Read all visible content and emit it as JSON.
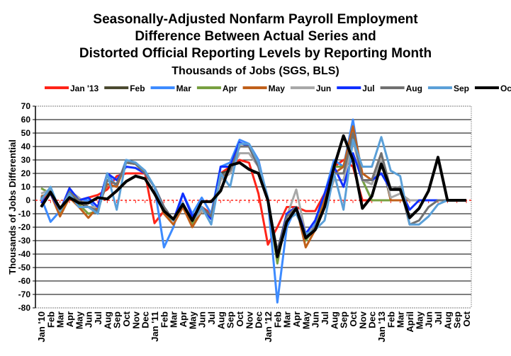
{
  "chart_data": {
    "type": "line",
    "title": [
      "Seasonally-Adjusted Nonfarm Payroll Employment",
      "Difference Between Actual Series and",
      "Distorted Official Reporting Levels by Reporting Month"
    ],
    "subtitle": "Thousands of Jobs (SGS, BLS)",
    "xlabel": "",
    "ylabel": "Thousands of Jobs Differential",
    "ylim": [
      -80,
      70
    ],
    "yticks": [
      70,
      60,
      50,
      40,
      30,
      20,
      10,
      0,
      -10,
      -20,
      -30,
      -40,
      -50,
      -60,
      -70,
      -80
    ],
    "grid": true,
    "legend_position": "top",
    "categories": [
      "Jan '10",
      "Feb",
      "Mar",
      "Apr",
      "May",
      "Jun",
      "Jul",
      "Aug",
      "Sep",
      "Oct",
      "Nov",
      "Dec",
      "Jan '11",
      "Feb",
      "Mar",
      "Apr",
      "May",
      "Jun",
      "Jul",
      "Aug",
      "Sep",
      "Oct",
      "Nov",
      "Dec",
      "Jan '12",
      "Feb",
      "Mar",
      "Apr",
      "May",
      "Jun",
      "Jul",
      "Aug",
      "Sep",
      "Oct",
      "Nov",
      "Dec",
      "Jan '13",
      "Feb",
      "Mar",
      "April",
      "May",
      "Jun",
      "Jul",
      "Aug",
      "Sep",
      "Oct"
    ],
    "series": [
      {
        "name": "Jan '13",
        "color": "#ff2418",
        "width": 3,
        "values": [
          0,
          5,
          -8,
          3,
          0,
          2,
          4,
          8,
          18,
          20,
          20,
          20,
          -17,
          -8,
          -15,
          -5,
          -15,
          -5,
          -10,
          20,
          25,
          30,
          28,
          5,
          -33,
          -20,
          -5,
          -5,
          -8,
          -8,
          5,
          25,
          30,
          25,
          0,
          0,
          0,
          0,
          0,
          0,
          0,
          0,
          0,
          0,
          0,
          0
        ]
      },
      {
        "name": "Feb",
        "color": "#4b4a30",
        "width": 3,
        "values": [
          2,
          7,
          -10,
          5,
          -2,
          -5,
          -8,
          15,
          12,
          28,
          27,
          20,
          10,
          -5,
          -15,
          -2,
          -18,
          -5,
          -12,
          20,
          22,
          40,
          40,
          25,
          0,
          -38,
          -10,
          -5,
          -28,
          -20,
          0,
          25,
          25,
          50,
          15,
          12,
          30,
          0,
          0,
          0,
          0,
          0,
          0,
          0,
          0,
          0
        ]
      },
      {
        "name": "Mar",
        "color": "#3d8bff",
        "width": 3,
        "values": [
          2,
          -16,
          -8,
          8,
          0,
          0,
          -8,
          20,
          10,
          30,
          28,
          20,
          10,
          -35,
          -20,
          5,
          -10,
          2,
          -10,
          25,
          28,
          45,
          42,
          30,
          0,
          -76,
          -20,
          -5,
          -28,
          -18,
          5,
          30,
          25,
          60,
          15,
          0,
          0,
          0,
          0,
          0,
          0,
          0,
          0,
          0,
          0,
          0
        ]
      },
      {
        "name": "Apr",
        "color": "#78a040",
        "width": 3,
        "values": [
          9,
          5,
          -10,
          3,
          -3,
          -10,
          -8,
          15,
          12,
          28,
          27,
          20,
          10,
          -10,
          -15,
          -5,
          -18,
          -8,
          -12,
          18,
          22,
          40,
          40,
          25,
          0,
          -47,
          -10,
          -5,
          -30,
          -20,
          0,
          25,
          25,
          50,
          15,
          0,
          0,
          0,
          0,
          0,
          0,
          0,
          0,
          0,
          0,
          0
        ]
      },
      {
        "name": "May",
        "color": "#c0601a",
        "width": 3,
        "values": [
          3,
          5,
          -12,
          2,
          -5,
          -13,
          -5,
          12,
          10,
          28,
          27,
          20,
          10,
          -10,
          -18,
          -5,
          -20,
          -8,
          -12,
          15,
          22,
          40,
          40,
          25,
          0,
          -40,
          -12,
          -5,
          -35,
          -22,
          0,
          20,
          25,
          55,
          20,
          15,
          35,
          0,
          0,
          0,
          0,
          0,
          0,
          0,
          0,
          0
        ]
      },
      {
        "name": "Jun",
        "color": "#a8a8a8",
        "width": 3,
        "values": [
          5,
          8,
          -8,
          7,
          2,
          -5,
          -5,
          15,
          12,
          28,
          27,
          20,
          10,
          -5,
          -15,
          -3,
          -15,
          -8,
          -12,
          15,
          20,
          35,
          35,
          25,
          0,
          -40,
          -12,
          8,
          -25,
          -20,
          -5,
          15,
          15,
          45,
          15,
          12,
          30,
          2,
          5,
          0,
          0,
          0,
          0,
          0,
          0,
          0
        ]
      },
      {
        "name": "Jul",
        "color": "#1030ff",
        "width": 3,
        "values": [
          -2,
          5,
          -8,
          9,
          0,
          2,
          -5,
          20,
          15,
          25,
          24,
          20,
          10,
          -5,
          -15,
          5,
          -12,
          -5,
          -14,
          25,
          25,
          43,
          40,
          25,
          0,
          -40,
          -10,
          -5,
          -25,
          -15,
          5,
          25,
          10,
          35,
          15,
          15,
          20,
          8,
          8,
          -7,
          0,
          0,
          0,
          0,
          0,
          0
        ]
      },
      {
        "name": "Aug",
        "color": "#707070",
        "width": 3,
        "values": [
          2,
          7,
          -8,
          6,
          0,
          -5,
          -8,
          15,
          12,
          28,
          27,
          20,
          10,
          -5,
          -15,
          -2,
          -15,
          -5,
          -12,
          18,
          22,
          40,
          40,
          25,
          0,
          -40,
          -12,
          -5,
          -28,
          -20,
          -5,
          20,
          20,
          50,
          15,
          15,
          35,
          8,
          10,
          -18,
          -15,
          -5,
          0,
          0,
          0,
          0
        ]
      },
      {
        "name": "Sep",
        "color": "#5ba0d8",
        "width": 3,
        "values": [
          0,
          10,
          -8,
          5,
          -5,
          -5,
          -10,
          20,
          -7,
          30,
          28,
          22,
          10,
          -8,
          -15,
          -2,
          -15,
          -5,
          -18,
          20,
          10,
          42,
          42,
          28,
          2,
          -42,
          -15,
          -10,
          -25,
          -22,
          -15,
          20,
          -7,
          45,
          25,
          25,
          47,
          22,
          18,
          -18,
          -18,
          -12,
          -3,
          0,
          0,
          0
        ]
      },
      {
        "name": "Oct",
        "color": "#000000",
        "width": 4,
        "values": [
          -5,
          6,
          -6,
          2,
          -2,
          -2,
          2,
          1,
          7,
          14,
          18,
          16,
          5,
          -8,
          -14,
          -3,
          -15,
          -1,
          -1,
          7,
          26,
          28,
          23,
          20,
          0,
          -42,
          -16,
          -6,
          -28,
          -22,
          -5,
          25,
          48,
          30,
          -6,
          3,
          27,
          8,
          8,
          -13,
          -6,
          7,
          32,
          0,
          0,
          0
        ]
      }
    ]
  }
}
